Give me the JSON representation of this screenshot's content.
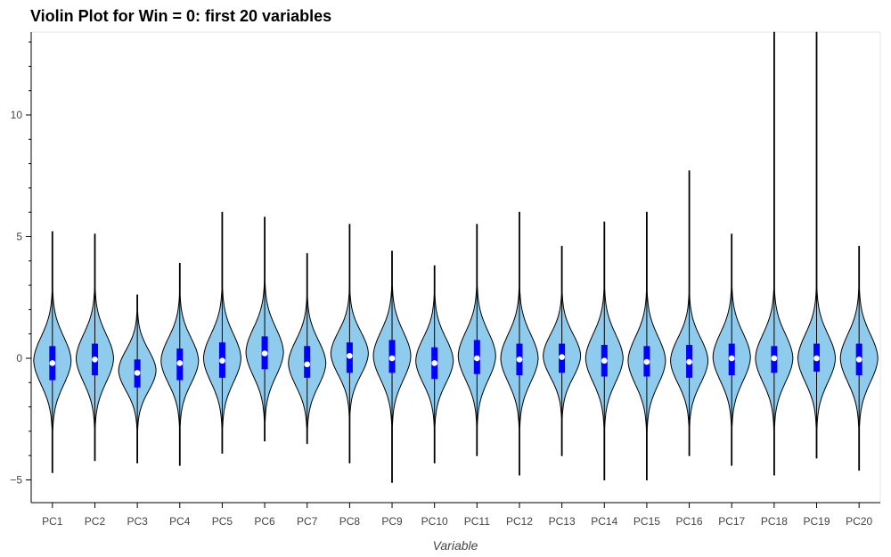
{
  "chart_data": {
    "type": "violin",
    "title": "Violin Plot for Win = 0: first 20 variables",
    "xlabel": "Variable",
    "ylabel": "",
    "ylim": [
      -5.9,
      13.4
    ],
    "yticks": [
      -5,
      0,
      5,
      10
    ],
    "grid": false,
    "colors": {
      "violin_fill": "#8ecbec",
      "violin_stroke": "#000000",
      "box": "#0000ff",
      "median": "#ffffff"
    },
    "categories": [
      "PC1",
      "PC2",
      "PC3",
      "PC4",
      "PC5",
      "PC6",
      "PC7",
      "PC8",
      "PC9",
      "PC10",
      "PC11",
      "PC12",
      "PC13",
      "PC14",
      "PC15",
      "PC16",
      "PC17",
      "PC18",
      "PC19",
      "PC20"
    ],
    "series": [
      {
        "category": "PC1",
        "min": -4.7,
        "max": 5.2,
        "q1": -0.9,
        "median": -0.2,
        "q3": 0.5,
        "mode": -0.1,
        "spread": 1.0
      },
      {
        "category": "PC2",
        "min": -4.2,
        "max": 5.1,
        "q1": -0.7,
        "median": -0.05,
        "q3": 0.6,
        "mode": 0.0,
        "spread": 1.0
      },
      {
        "category": "PC3",
        "min": -4.3,
        "max": 2.6,
        "q1": -1.2,
        "median": -0.6,
        "q3": -0.05,
        "mode": -0.5,
        "spread": 0.85
      },
      {
        "category": "PC4",
        "min": -4.4,
        "max": 3.9,
        "q1": -0.9,
        "median": -0.2,
        "q3": 0.4,
        "mode": -0.1,
        "spread": 0.95
      },
      {
        "category": "PC5",
        "min": -3.9,
        "max": 6.0,
        "q1": -0.8,
        "median": -0.1,
        "q3": 0.65,
        "mode": 0.0,
        "spread": 1.0
      },
      {
        "category": "PC6",
        "min": -3.4,
        "max": 5.8,
        "q1": -0.45,
        "median": 0.2,
        "q3": 0.9,
        "mode": 0.25,
        "spread": 1.0
      },
      {
        "category": "PC7",
        "min": -3.5,
        "max": 4.3,
        "q1": -0.8,
        "median": -0.25,
        "q3": 0.5,
        "mode": -0.2,
        "spread": 0.95
      },
      {
        "category": "PC8",
        "min": -4.3,
        "max": 5.5,
        "q1": -0.6,
        "median": 0.1,
        "q3": 0.65,
        "mode": 0.2,
        "spread": 0.9
      },
      {
        "category": "PC9",
        "min": -5.1,
        "max": 4.4,
        "q1": -0.6,
        "median": 0.0,
        "q3": 0.75,
        "mode": 0.1,
        "spread": 1.0
      },
      {
        "category": "PC10",
        "min": -4.3,
        "max": 3.8,
        "q1": -0.85,
        "median": -0.2,
        "q3": 0.45,
        "mode": -0.1,
        "spread": 0.95
      },
      {
        "category": "PC11",
        "min": -4.0,
        "max": 5.5,
        "q1": -0.65,
        "median": 0.0,
        "q3": 0.75,
        "mode": 0.1,
        "spread": 1.0
      },
      {
        "category": "PC12",
        "min": -4.8,
        "max": 6.0,
        "q1": -0.7,
        "median": -0.05,
        "q3": 0.6,
        "mode": 0.0,
        "spread": 1.0
      },
      {
        "category": "PC13",
        "min": -4.0,
        "max": 4.6,
        "q1": -0.6,
        "median": 0.05,
        "q3": 0.6,
        "mode": 0.1,
        "spread": 0.9
      },
      {
        "category": "PC14",
        "min": -5.0,
        "max": 5.6,
        "q1": -0.75,
        "median": -0.1,
        "q3": 0.55,
        "mode": 0.0,
        "spread": 1.0
      },
      {
        "category": "PC15",
        "min": -5.0,
        "max": 6.0,
        "q1": -0.75,
        "median": -0.15,
        "q3": 0.5,
        "mode": -0.1,
        "spread": 1.0
      },
      {
        "category": "PC16",
        "min": -4.0,
        "max": 7.7,
        "q1": -0.8,
        "median": -0.15,
        "q3": 0.55,
        "mode": -0.1,
        "spread": 0.95
      },
      {
        "category": "PC17",
        "min": -4.4,
        "max": 5.1,
        "q1": -0.7,
        "median": 0.0,
        "q3": 0.6,
        "mode": 0.05,
        "spread": 1.0
      },
      {
        "category": "PC18",
        "min": -4.8,
        "max": 13.4,
        "q1": -0.6,
        "median": 0.0,
        "q3": 0.5,
        "mode": 0.0,
        "spread": 1.0
      },
      {
        "category": "PC19",
        "min": -4.1,
        "max": 13.4,
        "q1": -0.55,
        "median": 0.0,
        "q3": 0.6,
        "mode": 0.0,
        "spread": 1.0
      },
      {
        "category": "PC20",
        "min": -4.6,
        "max": 4.6,
        "q1": -0.7,
        "median": -0.05,
        "q3": 0.6,
        "mode": 0.0,
        "spread": 1.0
      }
    ]
  }
}
